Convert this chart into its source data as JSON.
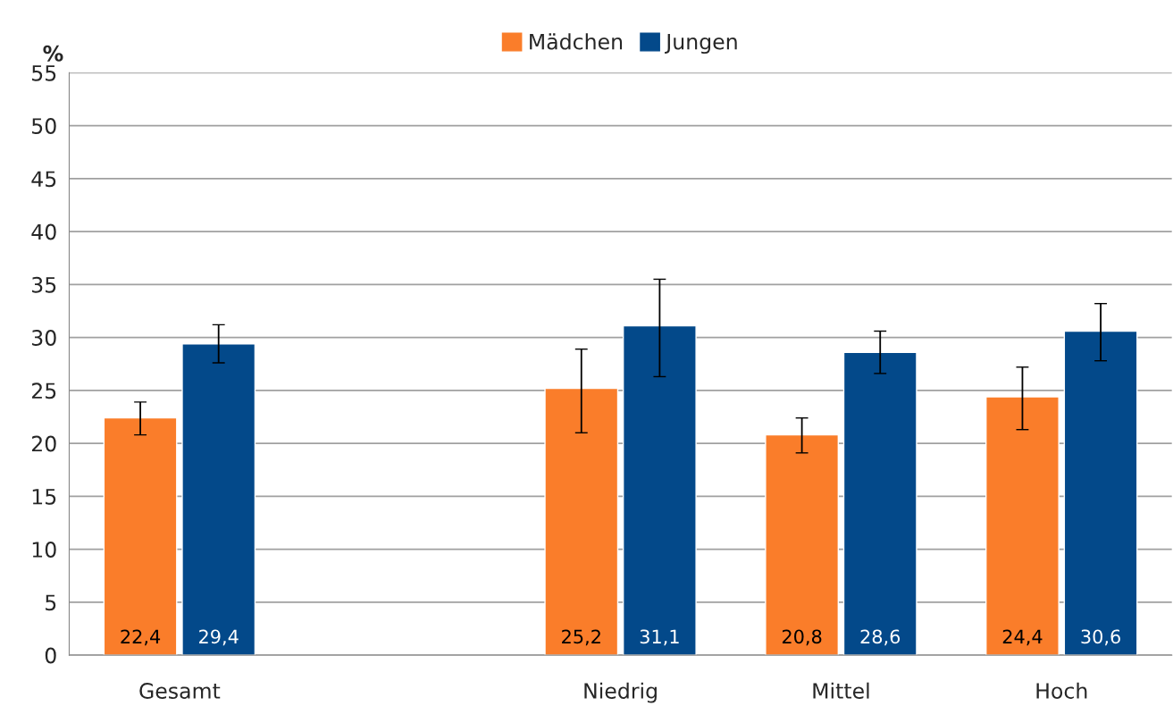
{
  "chart_data": {
    "type": "bar",
    "ylabel": "%",
    "categories": [
      "Gesamt",
      null,
      "Niedrig",
      "Mittel",
      "Hoch"
    ],
    "series": [
      {
        "name": "Mädchen",
        "color": "#fa7d2a",
        "values": [
          22.4,
          null,
          25.2,
          20.8,
          24.4
        ],
        "value_labels": [
          "22,4",
          null,
          "25,2",
          "20,8",
          "24,4"
        ],
        "errors": [
          [
            20.8,
            23.9
          ],
          null,
          [
            21.0,
            28.9
          ],
          [
            19.1,
            22.4
          ],
          [
            21.3,
            27.2
          ]
        ]
      },
      {
        "name": "Jungen",
        "color": "#03498a",
        "values": [
          29.4,
          null,
          31.1,
          28.6,
          30.6
        ],
        "value_labels": [
          "29,4",
          null,
          "31,1",
          "28,6",
          "30,6"
        ],
        "errors": [
          [
            27.6,
            31.2
          ],
          null,
          [
            26.3,
            35.5
          ],
          [
            26.6,
            30.6
          ],
          [
            27.8,
            33.2
          ]
        ]
      }
    ],
    "ylim": [
      0,
      55
    ],
    "yticks": [
      0,
      5,
      10,
      15,
      20,
      25,
      30,
      35,
      40,
      45,
      50,
      55
    ],
    "grid": "y",
    "legend": "top"
  }
}
